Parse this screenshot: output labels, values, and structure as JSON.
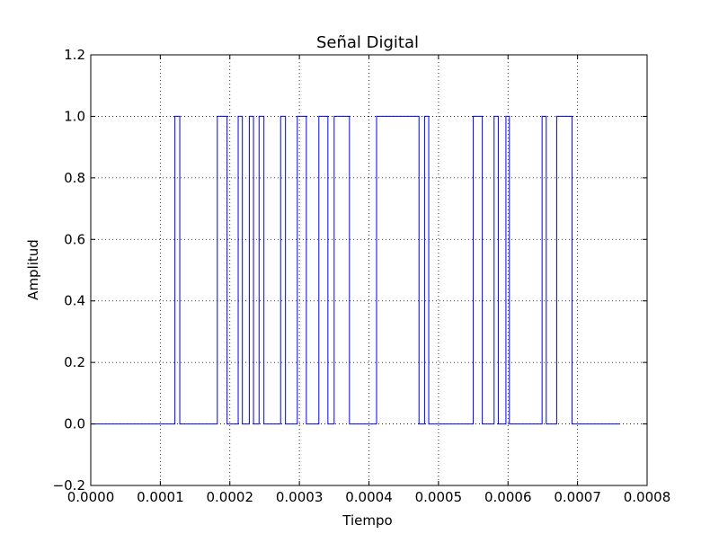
{
  "chart_data": {
    "type": "line",
    "title": "Señal Digital",
    "xlabel": "Tiempo",
    "ylabel": "Amplitud",
    "xlim": [
      0.0,
      0.0008
    ],
    "ylim": [
      -0.2,
      1.2
    ],
    "x_ticks": [
      0.0,
      0.0001,
      0.0002,
      0.0003,
      0.0004,
      0.0005,
      0.0006,
      0.0007,
      0.0008
    ],
    "x_tick_labels": [
      "0.0000",
      "0.0001",
      "0.0002",
      "0.0003",
      "0.0004",
      "0.0005",
      "0.0006",
      "0.0007",
      "0.0008"
    ],
    "y_ticks": [
      -0.2,
      0.0,
      0.2,
      0.4,
      0.6,
      0.8,
      1.0,
      1.2
    ],
    "y_tick_labels": [
      "−0.2",
      "0.0",
      "0.2",
      "0.4",
      "0.6",
      "0.8",
      "1.0",
      "1.2"
    ],
    "grid": true,
    "line_color": "#0000ff",
    "series": [
      {
        "name": "",
        "x_start": 0.0,
        "x_end": 0.000761,
        "high_intervals": [
          [
            0.000121,
            0.000128
          ],
          [
            0.000182,
            0.000196
          ],
          [
            0.000212,
            0.000218
          ],
          [
            0.000228,
            0.000234
          ],
          [
            0.000242,
            0.000249
          ],
          [
            0.000273,
            0.00028
          ],
          [
            0.000297,
            0.00031
          ],
          [
            0.000328,
            0.000341
          ],
          [
            0.00035,
            0.000372
          ],
          [
            0.000411,
            0.000472
          ],
          [
            0.00048,
            0.000486
          ],
          [
            0.00055,
            0.000563
          ],
          [
            0.00058,
            0.000586
          ],
          [
            0.000597,
            0.000602
          ],
          [
            0.000649,
            0.000655
          ],
          [
            0.00067,
            0.000692
          ]
        ]
      }
    ]
  }
}
